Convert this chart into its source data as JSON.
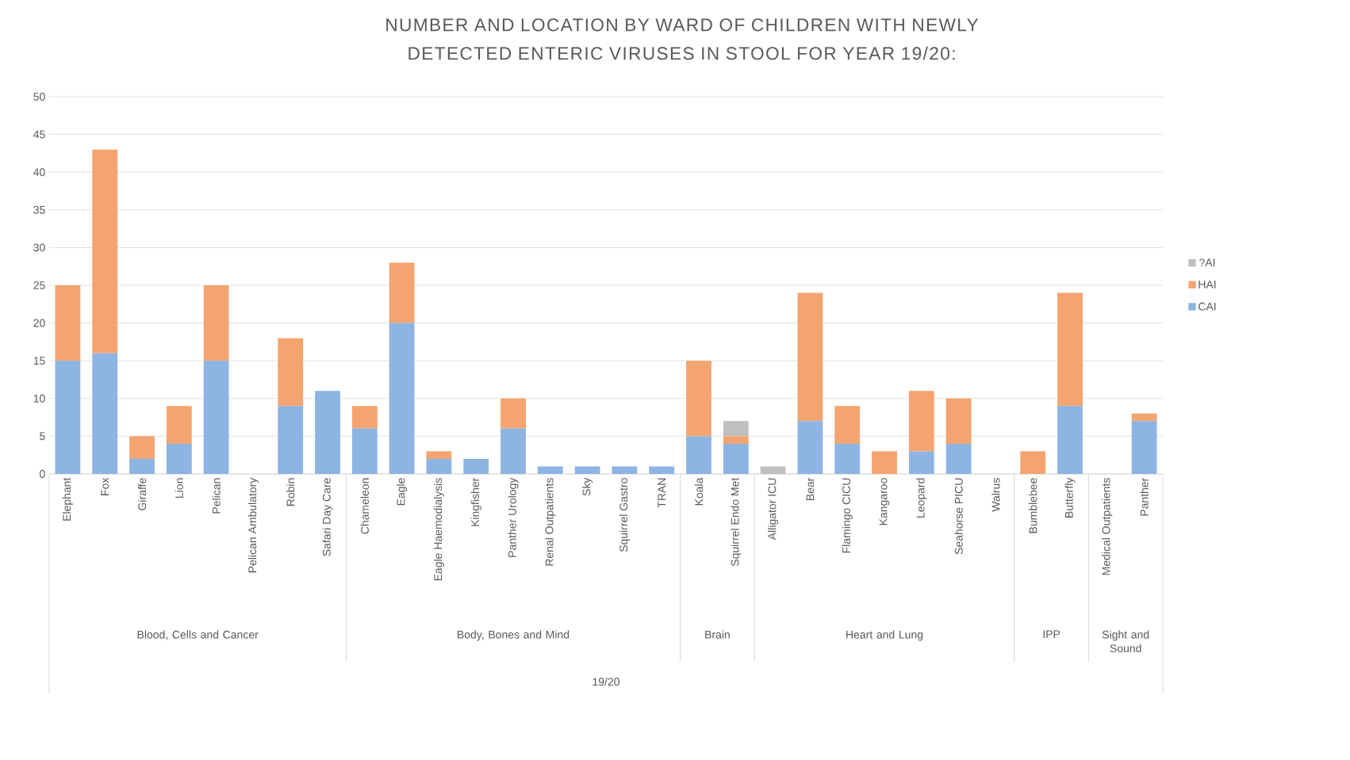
{
  "chart_data": {
    "type": "bar",
    "stacked": true,
    "title": "NUMBER AND LOCATION BY WARD OF CHILDREN WITH NEWLY DETECTED ENTERIC VIRUSES IN STOOL FOR YEAR 19/20:",
    "categories": [
      "Elephant",
      "Fox",
      "Giraffe",
      "Lion",
      "Pelican",
      "Pelican Ambulatory",
      "Robin",
      "Safari Day Care",
      "Chameleon",
      "Eagle",
      "Eagle Haemodialysis",
      "Kingfisher",
      "Panther Urology",
      "Renal Outpatients",
      "Sky",
      "Squirrel Gastro",
      "TRAN",
      "Koala",
      "Squirrel Endo Met",
      "Alligator ICU",
      "Bear",
      "Flamingo CICU",
      "Kangaroo",
      "Leopard",
      "Seahorse PICU",
      "Walrus",
      "Bumblebee",
      "Butterfly",
      "Medical Outpatients",
      "Panther"
    ],
    "series": [
      {
        "name": "CAI",
        "color": "#8db4e2",
        "values": [
          15,
          16,
          2,
          4,
          15,
          0,
          9,
          11,
          6,
          20,
          2,
          2,
          6,
          1,
          1,
          1,
          1,
          5,
          4,
          0,
          7,
          4,
          0,
          3,
          4,
          0,
          0,
          9,
          0,
          7
        ]
      },
      {
        "name": "HAI",
        "color": "#f4a46f",
        "values": [
          10,
          27,
          3,
          5,
          10,
          0,
          9,
          0,
          3,
          8,
          1,
          0,
          4,
          0,
          0,
          0,
          0,
          10,
          1,
          0,
          17,
          5,
          3,
          8,
          6,
          0,
          3,
          15,
          0,
          1
        ]
      },
      {
        "name": "?AI",
        "color": "#bfbfbf",
        "values": [
          0,
          0,
          0,
          0,
          0,
          0,
          0,
          0,
          0,
          0,
          0,
          0,
          0,
          0,
          0,
          0,
          0,
          0,
          2,
          1,
          0,
          0,
          0,
          0,
          0,
          0,
          0,
          0,
          0,
          0
        ]
      }
    ],
    "annotations": [
      "Blood, Cells and Cancer",
      "Body, Bones and Mind",
      "Brain",
      "Heart and Lung",
      "IPP",
      "Sight and Sound",
      "19/20"
    ],
    "ylim": [
      0,
      50
    ],
    "yticks": [
      0,
      5,
      10,
      15,
      20,
      25,
      30,
      35,
      40,
      45,
      50
    ],
    "grid": "y",
    "legend": "right"
  }
}
